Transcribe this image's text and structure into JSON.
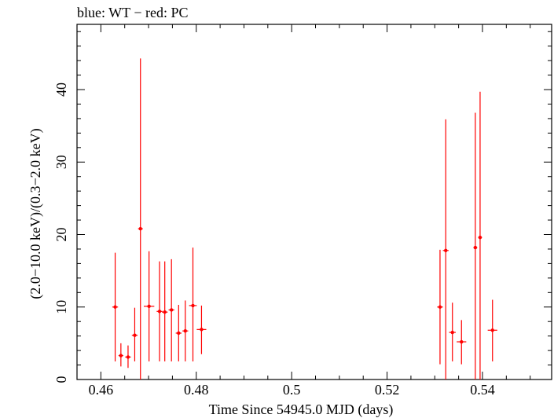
{
  "chart_data": {
    "type": "scatter",
    "title": "blue: WT − red: PC",
    "xlabel": "Time Since 54945.0 MJD (days)",
    "ylabel": "(2.0−10.0 keV)/(0.3−2.0 keV)",
    "xlim": [
      0.455,
      0.5545
    ],
    "ylim": [
      0,
      49
    ],
    "xticks": [
      0.46,
      0.48,
      0.5,
      0.52,
      0.54
    ],
    "xtick_labels": [
      "0.46",
      "0.48",
      "0.5",
      "0.52",
      "0.54"
    ],
    "yticks": [
      0,
      10,
      20,
      30,
      40
    ],
    "ytick_labels": [
      "0",
      "10",
      "20",
      "30",
      "40"
    ],
    "grid": false,
    "series": [
      {
        "color": "#ff0000",
        "points": [
          {
            "x": 0.463,
            "xerr": 0.0006,
            "y": 10.0,
            "ylo": 2.5,
            "yhi": 17.5
          },
          {
            "x": 0.4642,
            "xerr": 0.0005,
            "y": 3.3,
            "ylo": 1.8,
            "yhi": 5.0
          },
          {
            "x": 0.4657,
            "xerr": 0.0006,
            "y": 3.1,
            "ylo": 1.6,
            "yhi": 4.7
          },
          {
            "x": 0.4671,
            "xerr": 0.0006,
            "y": 6.1,
            "ylo": 2.5,
            "yhi": 9.9
          },
          {
            "x": 0.4683,
            "xerr": 0.0005,
            "y": 20.8,
            "ylo": 0.0,
            "yhi": 44.3
          },
          {
            "x": 0.4701,
            "xerr": 0.0011,
            "y": 10.1,
            "ylo": 2.5,
            "yhi": 17.7
          },
          {
            "x": 0.4723,
            "xerr": 0.0006,
            "y": 9.4,
            "ylo": 2.5,
            "yhi": 16.3
          },
          {
            "x": 0.4734,
            "xerr": 0.0006,
            "y": 9.3,
            "ylo": 2.5,
            "yhi": 16.3
          },
          {
            "x": 0.4748,
            "xerr": 0.0006,
            "y": 9.6,
            "ylo": 2.5,
            "yhi": 16.6
          },
          {
            "x": 0.4763,
            "xerr": 0.0006,
            "y": 6.4,
            "ylo": 2.5,
            "yhi": 10.3
          },
          {
            "x": 0.4777,
            "xerr": 0.0006,
            "y": 6.7,
            "ylo": 2.5,
            "yhi": 10.9
          },
          {
            "x": 0.4793,
            "xerr": 0.0008,
            "y": 10.2,
            "ylo": 2.5,
            "yhi": 18.2
          },
          {
            "x": 0.4811,
            "xerr": 0.001,
            "y": 6.9,
            "ylo": 3.5,
            "yhi": 10.2
          },
          {
            "x": 0.5311,
            "xerr": 0.0006,
            "y": 10.0,
            "ylo": 2.1,
            "yhi": 17.9
          },
          {
            "x": 0.5323,
            "xerr": 0.0006,
            "y": 17.8,
            "ylo": 0.0,
            "yhi": 35.9
          },
          {
            "x": 0.5337,
            "xerr": 0.0007,
            "y": 6.5,
            "ylo": 2.5,
            "yhi": 10.6
          },
          {
            "x": 0.5356,
            "xerr": 0.001,
            "y": 5.2,
            "ylo": 2.1,
            "yhi": 8.2
          },
          {
            "x": 0.5385,
            "xerr": 0.0004,
            "y": 18.2,
            "ylo": 0.0,
            "yhi": 36.8
          },
          {
            "x": 0.5395,
            "xerr": 0.0004,
            "y": 19.6,
            "ylo": 0.0,
            "yhi": 39.7
          },
          {
            "x": 0.5421,
            "xerr": 0.001,
            "y": 6.8,
            "ylo": 2.5,
            "yhi": 11.0
          }
        ]
      }
    ]
  }
}
